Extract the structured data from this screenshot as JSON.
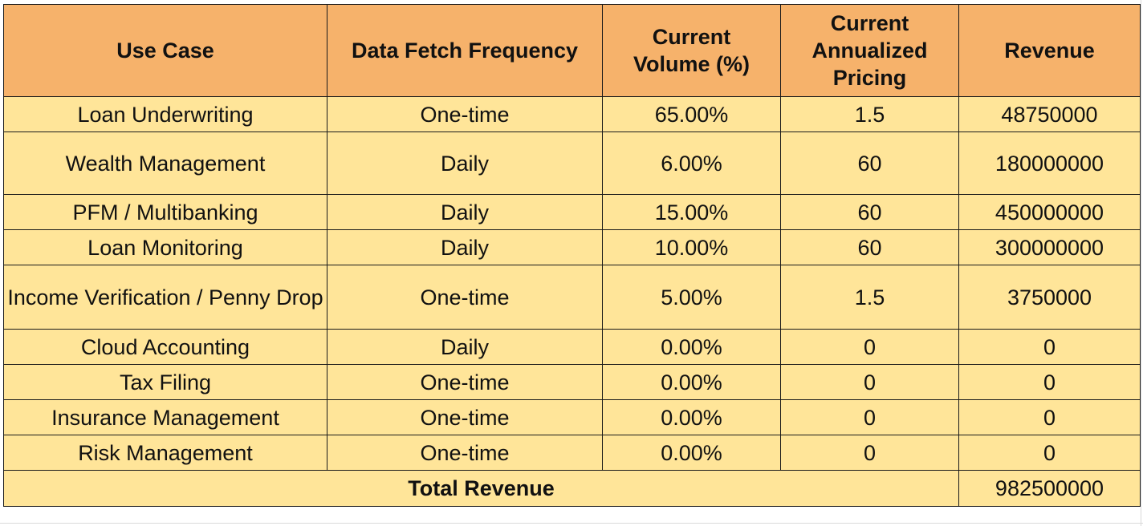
{
  "table": {
    "headers": [
      "Use Case",
      "Data Fetch Frequency",
      "Current Volume (%)",
      "Current Annualized Pricing",
      "Revenue"
    ],
    "rows": [
      [
        "Loan Underwriting",
        "One-time",
        "65.00%",
        "1.5",
        "48750000"
      ],
      [
        "Wealth Management",
        "Daily",
        "6.00%",
        "60",
        "180000000"
      ],
      [
        "PFM / Multibanking",
        "Daily",
        "15.00%",
        "60",
        "450000000"
      ],
      [
        "Loan Monitoring",
        "Daily",
        "10.00%",
        "60",
        "300000000"
      ],
      [
        "Income Verification / Penny Drop",
        "One-time",
        "5.00%",
        "1.5",
        "3750000"
      ],
      [
        "Cloud Accounting",
        "Daily",
        "0.00%",
        "0",
        "0"
      ],
      [
        "Tax Filing",
        "One-time",
        "0.00%",
        "0",
        "0"
      ],
      [
        "Insurance Management",
        "One-time",
        "0.00%",
        "0",
        "0"
      ],
      [
        "Risk Management",
        "One-time",
        "0.00%",
        "0",
        "0"
      ]
    ],
    "total": {
      "label": "Total Revenue",
      "value": "982500000"
    }
  },
  "colors": {
    "header_fill": "#f6b26b",
    "cell_fill": "#ffe599",
    "border": "#1a1a1a"
  }
}
